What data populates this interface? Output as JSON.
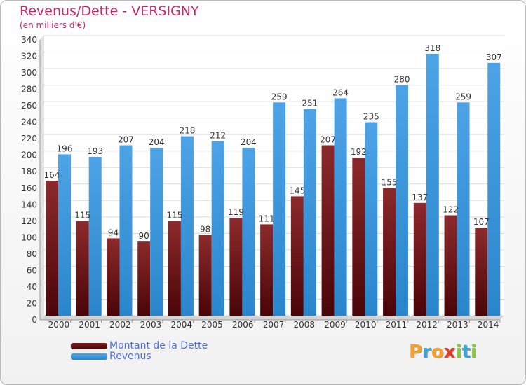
{
  "header": {
    "title": "Revenus/Dette - VERSIGNY",
    "subtitle": "(en milliers d'€)"
  },
  "colors": {
    "dette": "#7d1a1e",
    "revenus": "#4da3e6",
    "title": "#c8286a",
    "legend_text": "#4a6de2"
  },
  "chart_data": {
    "type": "bar",
    "categories": [
      "2000",
      "2001",
      "2002",
      "2003",
      "2004",
      "2005",
      "2006",
      "2007",
      "2008",
      "2009",
      "2010",
      "2011",
      "2012",
      "2013",
      "2014"
    ],
    "series": [
      {
        "name": "Montant de la Dette",
        "values": [
          164,
          115,
          94,
          90,
          115,
          98,
          119,
          111,
          145,
          207,
          192,
          155,
          137,
          122,
          107
        ]
      },
      {
        "name": "Revenus",
        "values": [
          196,
          193,
          207,
          204,
          218,
          212,
          204,
          259,
          251,
          264,
          235,
          280,
          318,
          259,
          307
        ]
      }
    ],
    "ylim": [
      0,
      340
    ],
    "yticks": [
      0,
      20,
      40,
      60,
      80,
      100,
      120,
      140,
      160,
      180,
      200,
      220,
      240,
      260,
      280,
      300,
      320,
      340
    ],
    "grid": true,
    "legend_position": "bottom-left"
  },
  "legend": {
    "items": [
      {
        "label": "Montant de la Dette",
        "icon": "swatch-dark-red"
      },
      {
        "label": "Revenus",
        "icon": "swatch-blue"
      }
    ]
  },
  "logo": {
    "letters": [
      {
        "ch": "P",
        "color": "#f2a12b"
      },
      {
        "ch": "r",
        "color": "#39a6d8"
      },
      {
        "ch": "o",
        "color": "#f2a12b"
      },
      {
        "ch": "x",
        "color": "#e33a2c"
      },
      {
        "ch": "i",
        "color": "#8cc63f"
      },
      {
        "ch": "t",
        "color": "#39a6d8"
      },
      {
        "ch": "i",
        "color": "#8cc63f"
      }
    ]
  }
}
